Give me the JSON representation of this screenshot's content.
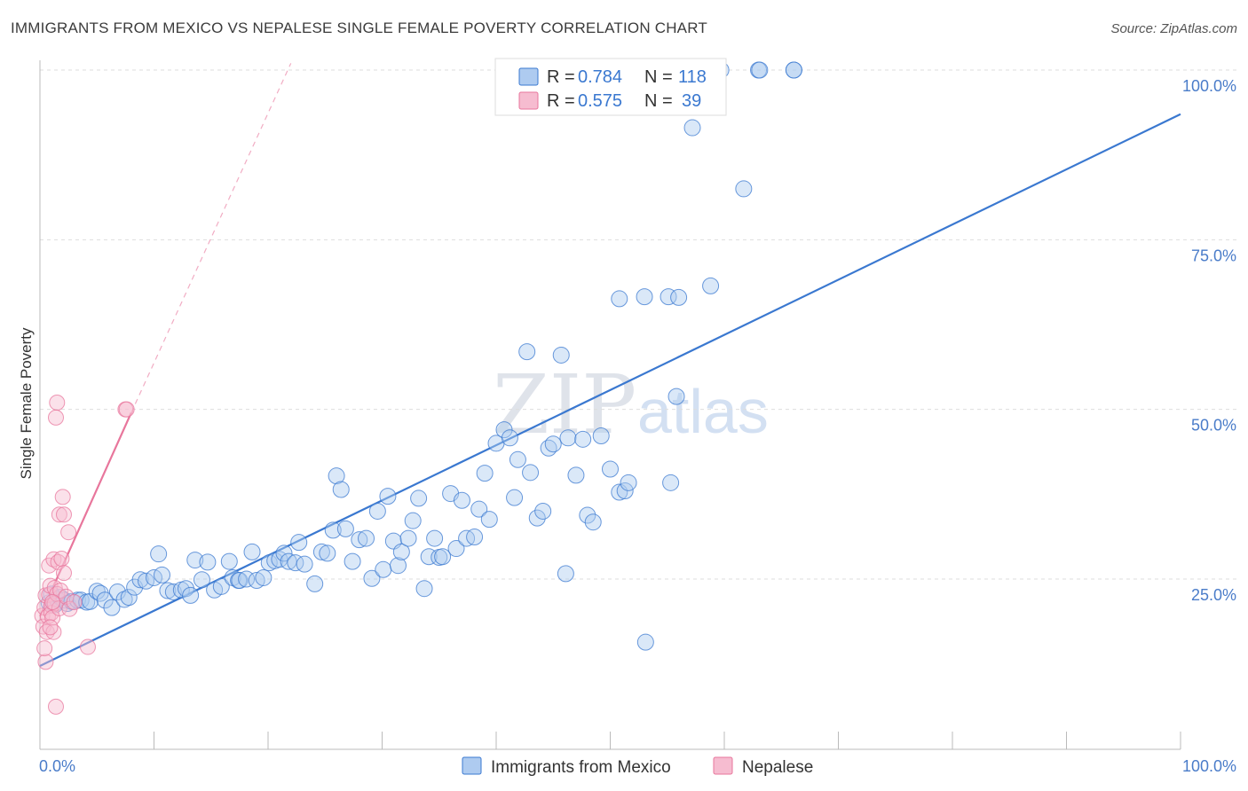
{
  "title": "IMMIGRANTS FROM MEXICO VS NEPALESE SINGLE FEMALE POVERTY CORRELATION CHART",
  "source": "Source: ZipAtlas.com",
  "watermark": {
    "zip": "ZIP",
    "atlas": "atlas"
  },
  "colors": {
    "blue": "#3a78d0",
    "blue_fill": "#aecbf0",
    "pink": "#e8769c",
    "pink_fill": "#f6bcd0",
    "grid": "#dddddd",
    "axis_label": "#4a7cc9"
  },
  "legend_top": {
    "rows": [
      {
        "r_label": "R =",
        "r_value": "0.784",
        "n_label": "N =",
        "n_value": "118"
      },
      {
        "r_label": "R =",
        "r_value": "0.575",
        "n_label": "N =",
        "n_value": "39"
      }
    ]
  },
  "legend_bottom": {
    "items": [
      "Immigrants from Mexico",
      "Nepalese"
    ]
  },
  "chart_data": {
    "type": "scatter",
    "title": "IMMIGRANTS FROM MEXICO VS NEPALESE SINGLE FEMALE POVERTY CORRELATION CHART",
    "xlabel": "",
    "ylabel": "Single Female Poverty",
    "xlim": [
      0,
      100
    ],
    "ylim": [
      0,
      102
    ],
    "x_tick_labels": [
      "0.0%",
      "100.0%"
    ],
    "y_ticks": [
      25,
      50,
      75,
      100
    ],
    "y_tick_labels": [
      "25.0%",
      "50.0%",
      "75.0%",
      "100.0%"
    ],
    "grid": true,
    "series": [
      {
        "name": "Immigrants from Mexico",
        "color": "#3a78d0",
        "r": 0.784,
        "n": 118,
        "trend": {
          "x": [
            0,
            100
          ],
          "y": [
            12.2,
            93.5
          ],
          "style": "solid"
        },
        "points": [
          [
            0.8,
            21.5
          ],
          [
            1.0,
            22.8
          ],
          [
            1.3,
            21.2
          ],
          [
            1.5,
            22.0
          ],
          [
            1.8,
            22.3
          ],
          [
            2.1,
            21.9
          ],
          [
            2.4,
            21.4
          ],
          [
            2.8,
            21.7
          ],
          [
            3.3,
            21.9
          ],
          [
            3.6,
            21.9
          ],
          [
            4.1,
            21.6
          ],
          [
            4.4,
            21.7
          ],
          [
            5.0,
            23.2
          ],
          [
            5.3,
            22.9
          ],
          [
            5.7,
            21.9
          ],
          [
            6.3,
            20.8
          ],
          [
            6.8,
            23.1
          ],
          [
            7.4,
            22.0
          ],
          [
            7.8,
            22.3
          ],
          [
            8.3,
            23.8
          ],
          [
            8.8,
            24.9
          ],
          [
            9.3,
            24.7
          ],
          [
            10.0,
            25.2
          ],
          [
            10.4,
            28.7
          ],
          [
            10.7,
            25.6
          ],
          [
            11.2,
            23.3
          ],
          [
            11.7,
            23.1
          ],
          [
            12.4,
            23.4
          ],
          [
            12.8,
            23.6
          ],
          [
            13.2,
            22.6
          ],
          [
            13.6,
            27.8
          ],
          [
            14.2,
            24.9
          ],
          [
            14.7,
            27.5
          ],
          [
            15.3,
            23.4
          ],
          [
            15.9,
            23.9
          ],
          [
            16.6,
            27.6
          ],
          [
            16.9,
            25.2
          ],
          [
            17.4,
            24.8
          ],
          [
            17.5,
            24.8
          ],
          [
            18.1,
            25.0
          ],
          [
            18.6,
            29.0
          ],
          [
            19.0,
            24.8
          ],
          [
            19.6,
            25.2
          ],
          [
            20.1,
            27.4
          ],
          [
            20.6,
            27.7
          ],
          [
            21.0,
            27.9
          ],
          [
            21.4,
            28.8
          ],
          [
            21.8,
            27.6
          ],
          [
            22.4,
            27.4
          ],
          [
            22.7,
            30.4
          ],
          [
            23.2,
            27.2
          ],
          [
            24.1,
            24.3
          ],
          [
            24.7,
            29.0
          ],
          [
            25.2,
            28.8
          ],
          [
            25.7,
            32.2
          ],
          [
            26.0,
            40.2
          ],
          [
            26.4,
            38.2
          ],
          [
            26.8,
            32.4
          ],
          [
            27.4,
            27.6
          ],
          [
            28.0,
            30.8
          ],
          [
            28.6,
            31.0
          ],
          [
            29.1,
            25.1
          ],
          [
            29.6,
            35.0
          ],
          [
            30.1,
            26.4
          ],
          [
            30.5,
            37.2
          ],
          [
            31.0,
            30.6
          ],
          [
            31.4,
            27.0
          ],
          [
            31.7,
            29.0
          ],
          [
            32.3,
            31.0
          ],
          [
            32.7,
            33.6
          ],
          [
            33.2,
            36.9
          ],
          [
            33.7,
            23.6
          ],
          [
            34.1,
            28.3
          ],
          [
            34.6,
            31.0
          ],
          [
            35.0,
            28.2
          ],
          [
            35.3,
            28.3
          ],
          [
            36.0,
            37.6
          ],
          [
            36.5,
            29.5
          ],
          [
            37.0,
            36.6
          ],
          [
            37.4,
            31.0
          ],
          [
            38.1,
            31.2
          ],
          [
            38.5,
            35.3
          ],
          [
            39.0,
            40.6
          ],
          [
            39.4,
            33.8
          ],
          [
            40.0,
            45.0
          ],
          [
            40.7,
            47.0
          ],
          [
            41.2,
            45.8
          ],
          [
            41.6,
            37.0
          ],
          [
            41.9,
            42.6
          ],
          [
            42.7,
            58.5
          ],
          [
            43.0,
            40.7
          ],
          [
            43.6,
            34.0
          ],
          [
            44.1,
            35.0
          ],
          [
            44.6,
            44.3
          ],
          [
            45.0,
            44.9
          ],
          [
            45.7,
            58.0
          ],
          [
            46.1,
            25.8
          ],
          [
            46.3,
            45.8
          ],
          [
            47.0,
            40.3
          ],
          [
            47.6,
            45.6
          ],
          [
            48.0,
            34.4
          ],
          [
            48.5,
            33.4
          ],
          [
            49.2,
            46.1
          ],
          [
            50.0,
            41.2
          ],
          [
            50.8,
            37.8
          ],
          [
            50.8,
            66.3
          ],
          [
            51.3,
            38.0
          ],
          [
            51.6,
            39.2
          ],
          [
            53.0,
            66.6
          ],
          [
            53.1,
            15.7
          ],
          [
            53.5,
            100.0
          ],
          [
            55.1,
            66.6
          ],
          [
            55.8,
            51.9
          ],
          [
            55.3,
            39.2
          ],
          [
            56.0,
            66.5
          ],
          [
            57.2,
            91.5
          ],
          [
            58.1,
            100.0
          ],
          [
            59.7,
            100.0
          ],
          [
            63.0,
            100.0
          ],
          [
            58.8,
            68.2
          ],
          [
            61.7,
            82.5
          ],
          [
            63.1,
            100.0
          ],
          [
            66.1,
            100.0
          ],
          [
            66.1,
            100.0
          ]
        ]
      },
      {
        "name": "Nepalese",
        "color": "#e8769c",
        "r": 0.575,
        "n": 39,
        "trend": {
          "x": [
            0,
            8
          ],
          "y": [
            19.5,
            49.5
          ],
          "style": "solid",
          "extension": {
            "x": [
              8,
              22
            ],
            "y": [
              49.5,
              101
            ],
            "style": "dashed"
          }
        },
        "points": [
          [
            0.2,
            19.6
          ],
          [
            0.3,
            18.0
          ],
          [
            0.4,
            20.8
          ],
          [
            0.5,
            22.6
          ],
          [
            0.5,
            12.8
          ],
          [
            0.6,
            17.2
          ],
          [
            0.7,
            19.5
          ],
          [
            0.8,
            27.0
          ],
          [
            0.8,
            22.7
          ],
          [
            0.9,
            24.0
          ],
          [
            1.0,
            21.1
          ],
          [
            1.0,
            20.0
          ],
          [
            1.1,
            19.3
          ],
          [
            1.2,
            27.9
          ],
          [
            1.2,
            17.2
          ],
          [
            1.3,
            23.7
          ],
          [
            1.3,
            21.4
          ],
          [
            1.4,
            48.8
          ],
          [
            1.4,
            6.2
          ],
          [
            1.5,
            51.0
          ],
          [
            1.5,
            22.8
          ],
          [
            1.6,
            27.5
          ],
          [
            1.7,
            20.7
          ],
          [
            1.7,
            34.5
          ],
          [
            1.8,
            23.3
          ],
          [
            1.9,
            28.0
          ],
          [
            2.0,
            37.1
          ],
          [
            2.1,
            25.9
          ],
          [
            2.1,
            34.5
          ],
          [
            2.3,
            22.4
          ],
          [
            2.5,
            31.9
          ],
          [
            2.6,
            20.6
          ],
          [
            3.0,
            21.6
          ],
          [
            4.2,
            15.0
          ],
          [
            7.5,
            50.0
          ],
          [
            7.6,
            50.0
          ],
          [
            0.4,
            14.8
          ],
          [
            0.9,
            17.9
          ],
          [
            1.1,
            21.6
          ]
        ]
      }
    ]
  }
}
